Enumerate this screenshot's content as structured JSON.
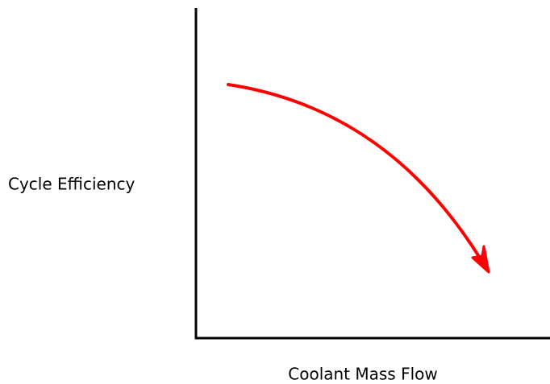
{
  "axes": {
    "y_label": "Cycle Efficiency",
    "x_label": "Coolant Mass Flow"
  }
}
